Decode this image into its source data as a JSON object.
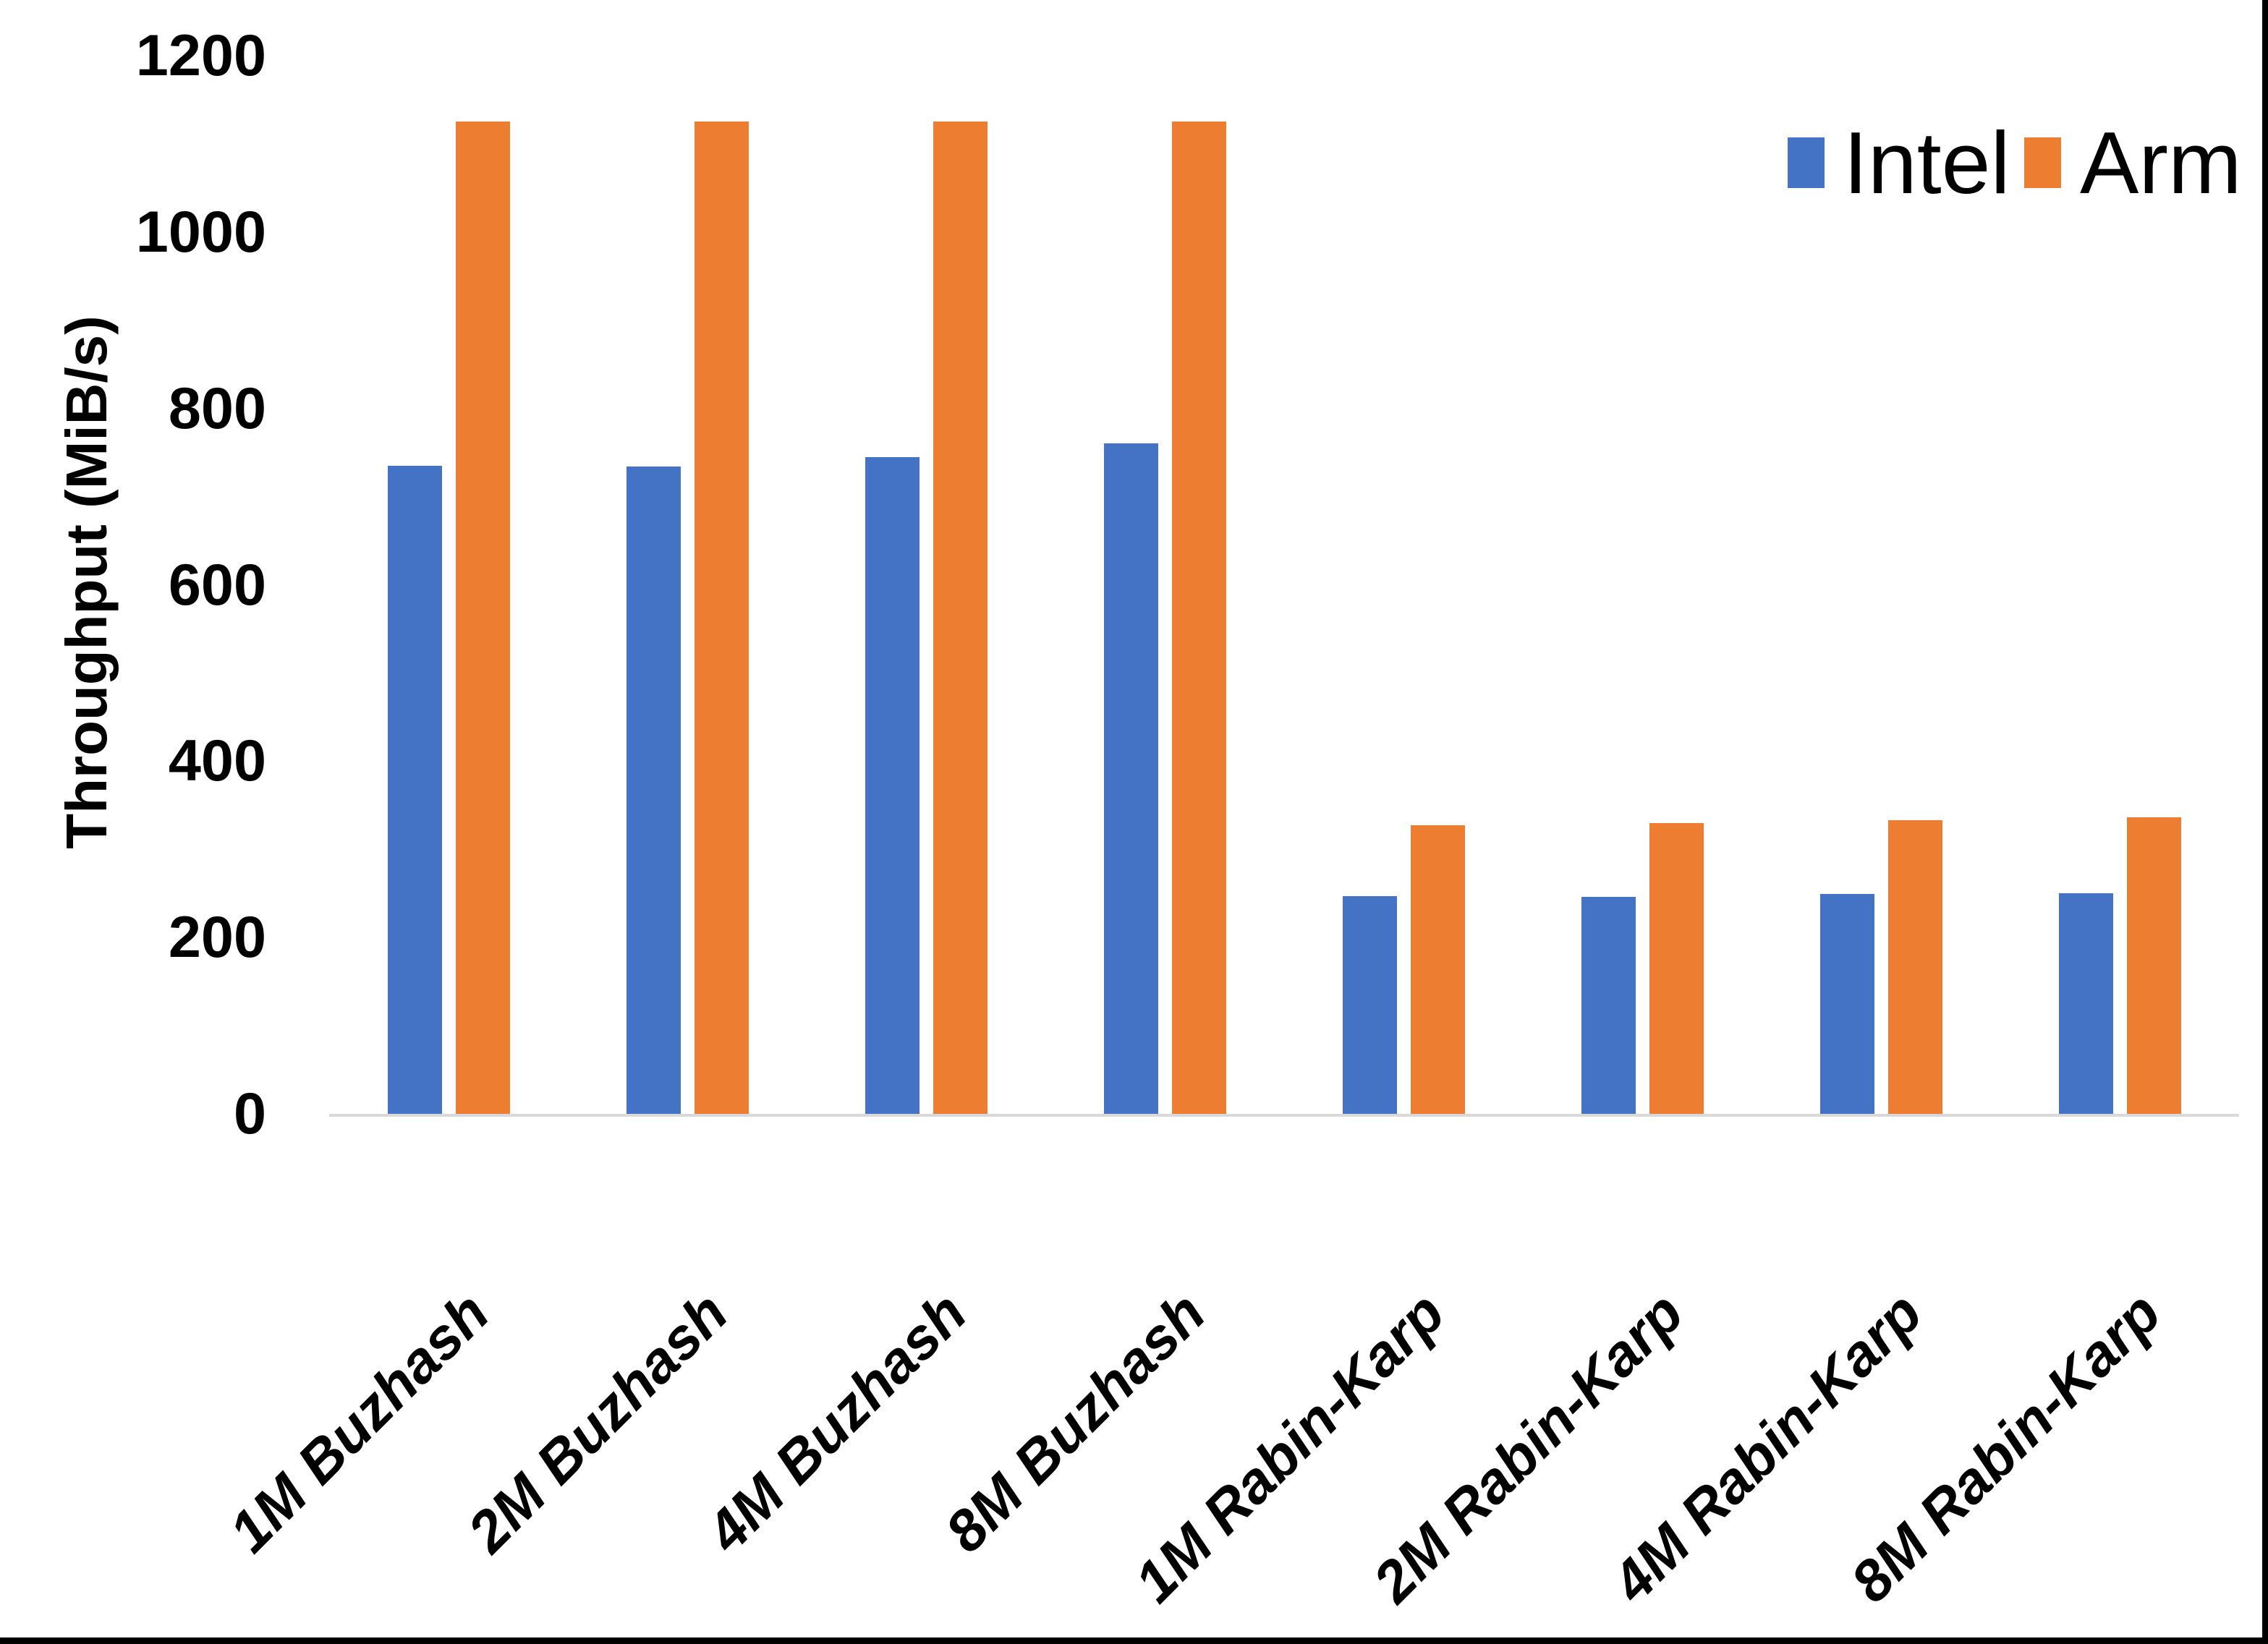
{
  "chart_data": {
    "type": "bar",
    "title": "",
    "ylabel": "Throughput (MiB/s)",
    "xlabel": "",
    "ylim": [
      0,
      1200
    ],
    "ytick_interval": 200,
    "yticks": [
      0,
      200,
      400,
      600,
      800,
      1000,
      1200
    ],
    "grid": false,
    "legend_position": "top-right",
    "categories": [
      "1M Buzhash",
      "2M Buzhash",
      "4M Buzhash",
      "8M Buzhash",
      "1M Rabin-Karp",
      "2M Rabin-Karp",
      "4M Rabin-Karp",
      "8M Rabin-Karp"
    ],
    "series": [
      {
        "name": "Intel",
        "color": "#4472C4",
        "values": [
          735,
          734,
          745,
          760,
          247,
          246,
          249,
          250
        ]
      },
      {
        "name": "Arm",
        "color": "#ED7D31",
        "values": [
          1125,
          1125,
          1125,
          1125,
          327,
          330,
          333,
          336
        ]
      }
    ],
    "axis_line_color": "#D9D9D9",
    "text_color": "#000000",
    "background_color": "#FFFFFF"
  }
}
